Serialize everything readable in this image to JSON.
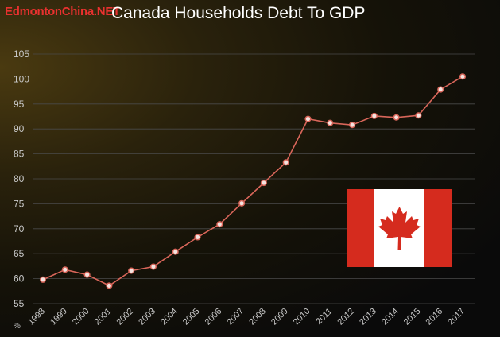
{
  "watermark": "EdmontonChina.NET",
  "unit_label": "%",
  "colors": {
    "line": "#d9665a",
    "marker_fill": "#f4e4e0",
    "grid": "#4a4a4a",
    "text": "#c8c8c8",
    "flag_red": "#d52b1e",
    "flag_white": "#ffffff"
  },
  "flag_icon": "canada-flag",
  "chart_data": {
    "type": "line",
    "title": "Canada Households Debt To GDP",
    "xlabel": "",
    "ylabel": "%",
    "ylim": [
      55,
      105
    ],
    "yticks": [
      55,
      60,
      65,
      70,
      75,
      80,
      85,
      90,
      95,
      100,
      105
    ],
    "grid": true,
    "categories": [
      "1998",
      "1999",
      "2000",
      "2001",
      "2002",
      "2003",
      "2004",
      "2005",
      "2006",
      "2007",
      "2008",
      "2009",
      "2010",
      "2011",
      "2012",
      "2013",
      "2014",
      "2015",
      "2016",
      "2017"
    ],
    "values": [
      59.8,
      61.8,
      60.8,
      58.6,
      61.6,
      62.4,
      65.4,
      68.3,
      70.9,
      75.1,
      79.2,
      83.3,
      92.0,
      91.2,
      90.8,
      92.6,
      92.3,
      92.7,
      97.9,
      100.5
    ]
  }
}
